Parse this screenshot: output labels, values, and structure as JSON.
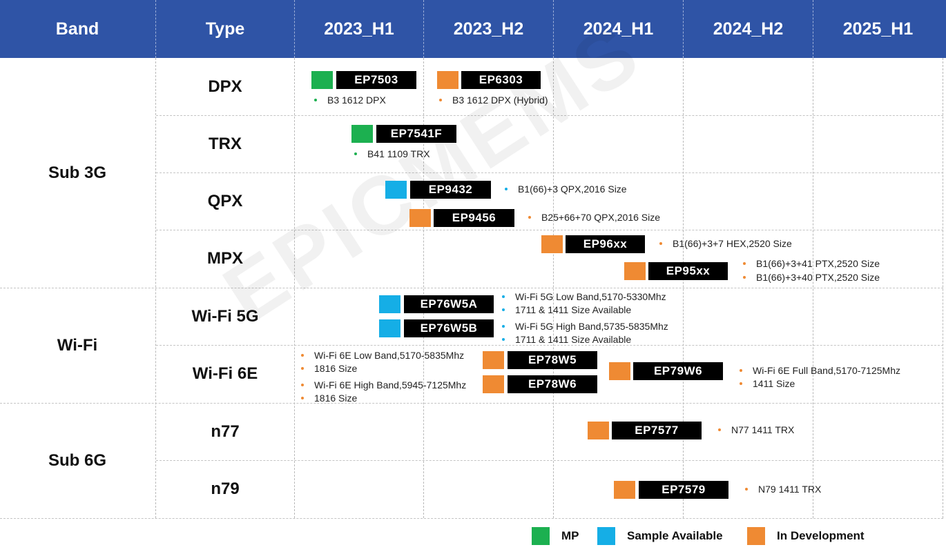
{
  "header": {
    "band": "Band",
    "type": "Type",
    "periods": [
      "2023_H1",
      "2023_H2",
      "2024_H1",
      "2024_H2",
      "2025_H1"
    ]
  },
  "bands": {
    "sub3g": "Sub 3G",
    "wifi": "Wi-Fi",
    "sub6g": "Sub 6G"
  },
  "types": {
    "dpx": "DPX",
    "trx": "TRX",
    "qpx": "QPX",
    "mpx": "MPX",
    "wifi5g": "Wi-Fi 5G",
    "wifi6e": "Wi-Fi 6E",
    "n77": "n77",
    "n79": "n79"
  },
  "products": {
    "ep7503": {
      "name": "EP7503",
      "status": "MP",
      "notes": [
        "B3 1612 DPX"
      ]
    },
    "ep6303": {
      "name": "EP6303",
      "status": "In Development",
      "notes": [
        "B3 1612 DPX (Hybrid)"
      ]
    },
    "ep7541f": {
      "name": "EP7541F",
      "status": "MP",
      "notes": [
        "B41 1109 TRX"
      ]
    },
    "ep9432": {
      "name": "EP9432",
      "status": "Sample Available",
      "notes": [
        "B1(66)+3 QPX,2016 Size"
      ]
    },
    "ep9456": {
      "name": "EP9456",
      "status": "In Development",
      "notes": [
        "B25+66+70 QPX,2016 Size"
      ]
    },
    "ep96xx": {
      "name": "EP96xx",
      "status": "In Development",
      "notes": [
        "B1(66)+3+7 HEX,2520 Size"
      ]
    },
    "ep95xx": {
      "name": "EP95xx",
      "status": "In Development",
      "notes": [
        "B1(66)+3+41 PTX,2520 Size",
        "B1(66)+3+40 PTX,2520 Size"
      ]
    },
    "ep76w5a": {
      "name": "EP76W5A",
      "status": "Sample Available",
      "notes": [
        "Wi-Fi 5G Low Band,5170-5330Mhz",
        "1711 & 1411 Size Available"
      ]
    },
    "ep76w5b": {
      "name": "EP76W5B",
      "status": "Sample Available",
      "notes": [
        "Wi-Fi 5G High Band,5735-5835Mhz",
        "1711 & 1411 Size Available"
      ]
    },
    "ep78w5": {
      "name": "EP78W5",
      "status": "In Development"
    },
    "ep78w6": {
      "name": "EP78W6",
      "status": "In Development"
    },
    "ep78_notes": [
      "Wi-Fi 6E Low Band,5170-5835Mhz",
      "1816 Size",
      "Wi-Fi 6E High Band,5945-7125Mhz",
      "1816 Size"
    ],
    "ep79w6": {
      "name": "EP79W6",
      "status": "In Development",
      "notes": [
        "Wi-Fi 6E Full Band,5170-7125Mhz",
        "1411 Size"
      ]
    },
    "ep7577": {
      "name": "EP7577",
      "status": "In Development",
      "notes": [
        "N77 1411 TRX"
      ]
    },
    "ep7579": {
      "name": "EP7579",
      "status": "In Development",
      "notes": [
        "N79 1411 TRX"
      ]
    }
  },
  "legend": {
    "mp": "MP",
    "sample": "Sample Available",
    "dev": "In Development"
  },
  "colors": {
    "header": "#2f54a6",
    "mp": "#1cb050",
    "sample": "#15aee6",
    "dev": "#ef8a33",
    "product_box": "#000000"
  },
  "watermark": "EPICMEMS"
}
